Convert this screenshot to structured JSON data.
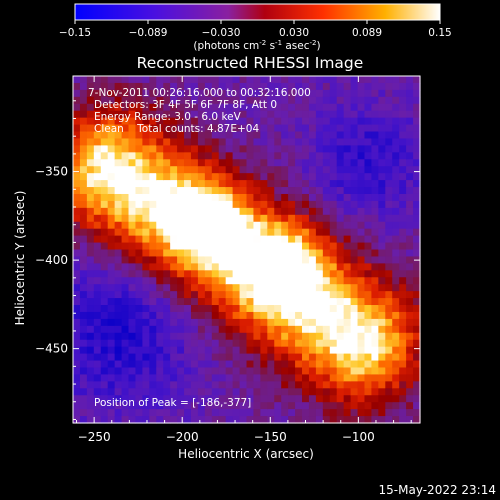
{
  "colorbar": {
    "ticks": [
      "-0.15",
      "-0.089",
      "-0.030",
      "0.030",
      "0.089",
      "0.15"
    ],
    "unit_label": "(photons cm",
    "unit_sup1": "-2",
    "unit_mid": " s",
    "unit_sup2": "-1",
    "unit_mid2": " asec",
    "unit_sup3": "-2",
    "unit_end": ")"
  },
  "chart_data": {
    "type": "heatmap",
    "title": "Reconstructed RHESSI Image",
    "xlabel": "Heliocentric X (arcsec)",
    "ylabel": "Heliocentric Y (arcsec)",
    "xlim": [
      -262,
      -65
    ],
    "ylim": [
      -492,
      -296
    ],
    "xticks": [
      -250,
      -200,
      -150,
      -100
    ],
    "yticks": [
      -350,
      -400,
      -450
    ],
    "xtick_labels": [
      "−250",
      "−200",
      "−150",
      "−100"
    ],
    "ytick_labels": [
      "−350",
      "−400",
      "−450"
    ],
    "color_range": [
      -0.15,
      0.15
    ],
    "peak_position": [
      -186,
      -377
    ],
    "colors": {
      "low": "#0000ff",
      "mid_low": "#6a00c8",
      "mid": "#a00000",
      "mid_high": "#ff6a00",
      "high": "#ffffff"
    }
  },
  "annotations": {
    "time_range": "7-Nov-2011 00:26:16.000 to 00:32:16.000",
    "detectors": "Detectors: 3F 4F 5F 6F 7F 8F, Att 0",
    "energy": "Energy Range: 3.0 - 6.0 keV",
    "clean": "Clean    Total counts: 4.87E+04",
    "peak": "Position of Peak = [-186,-377]"
  },
  "footer": {
    "timestamp": "15-May-2022 23:14"
  }
}
